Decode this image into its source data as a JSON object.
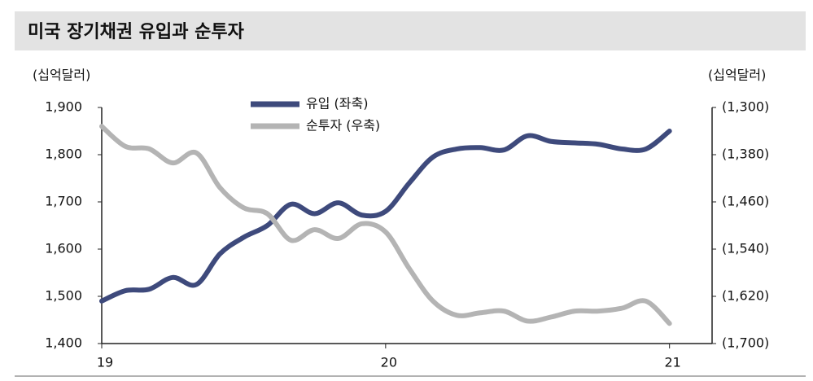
{
  "chart_data": {
    "type": "line",
    "title": "미국 장기채권 유입과 순투자",
    "y_label": "(십억달러)",
    "y2_label": "(십억달러)",
    "x": [
      0,
      1,
      2,
      3,
      4,
      5,
      6,
      7,
      8,
      9,
      10,
      11,
      12,
      13,
      14,
      15,
      16,
      17,
      18,
      19,
      20,
      21,
      22,
      23,
      24
    ],
    "xlim": [
      0,
      25.8
    ],
    "xticks": [
      {
        "value": 0,
        "label": "19"
      },
      {
        "value": 12,
        "label": "20"
      },
      {
        "value": 24,
        "label": "21"
      }
    ],
    "ylim": [
      1400,
      1900
    ],
    "yticks": [
      {
        "value": 1400,
        "label": "1,400"
      },
      {
        "value": 1500,
        "label": "1,500"
      },
      {
        "value": 1600,
        "label": "1,600"
      },
      {
        "value": 1700,
        "label": "1,700"
      },
      {
        "value": 1800,
        "label": "1,800"
      },
      {
        "value": 1900,
        "label": "1,900"
      }
    ],
    "y2lim": [
      -1700,
      -1300
    ],
    "y2ticks": [
      {
        "value": -1300,
        "label": "(1,300)"
      },
      {
        "value": -1380,
        "label": "(1,380)"
      },
      {
        "value": -1460,
        "label": "(1,460)"
      },
      {
        "value": -1540,
        "label": "(1,540)"
      },
      {
        "value": -1620,
        "label": "(1,620)"
      },
      {
        "value": -1700,
        "label": "(1,700)"
      }
    ],
    "y2_inverted": true,
    "series": [
      {
        "name": "유입 (좌축)",
        "color": "#3e4a7c",
        "values": [
          1490,
          1512,
          1515,
          1540,
          1525,
          1590,
          1625,
          1650,
          1695,
          1675,
          1698,
          1672,
          1680,
          1740,
          1795,
          1812,
          1815,
          1810,
          1840,
          1828,
          1825,
          1822,
          1812,
          1812,
          1850
        ]
      },
      {
        "name": "순투자 (우축)",
        "color": "#b4b4b4",
        "axis": "y2",
        "values": [
          -1332,
          -1366,
          -1370,
          -1394,
          -1377,
          -1436,
          -1470,
          -1480,
          -1525,
          -1507,
          -1522,
          -1497,
          -1511,
          -1573,
          -1628,
          -1652,
          -1648,
          -1645,
          -1662,
          -1655,
          -1645,
          -1645,
          -1640,
          -1628,
          -1666
        ]
      }
    ]
  }
}
